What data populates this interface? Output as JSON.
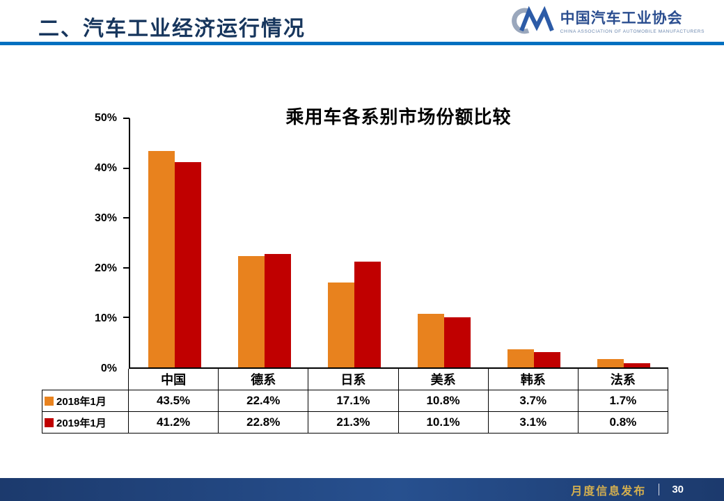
{
  "header": {
    "title": "二、汽车工业经济运行情况",
    "logo": {
      "name": "中国汽车工业协会",
      "subtitle": "CHINA ASSOCIATION OF AUTOMOBILE MANUFACTURERS"
    }
  },
  "chart_data": {
    "type": "bar",
    "title": "乘用车各系别市场份额比较",
    "categories": [
      "中国",
      "德系",
      "日系",
      "美系",
      "韩系",
      "法系"
    ],
    "series": [
      {
        "name": "2018年1月",
        "color": "#E8821E",
        "values": [
          43.5,
          22.4,
          17.1,
          10.8,
          3.7,
          1.7
        ]
      },
      {
        "name": "2019年1月",
        "color": "#C00000",
        "values": [
          41.2,
          22.8,
          21.3,
          10.1,
          3.1,
          0.8
        ]
      }
    ],
    "ylim": [
      0,
      50
    ],
    "ytick_step": 10,
    "ytick_labels": [
      "0%",
      "10%",
      "20%",
      "30%",
      "40%",
      "50%"
    ],
    "value_suffix": "%",
    "grid": false,
    "legend_position": "table-below"
  },
  "footer": {
    "label": "月度信息发布",
    "page_number": "30"
  }
}
